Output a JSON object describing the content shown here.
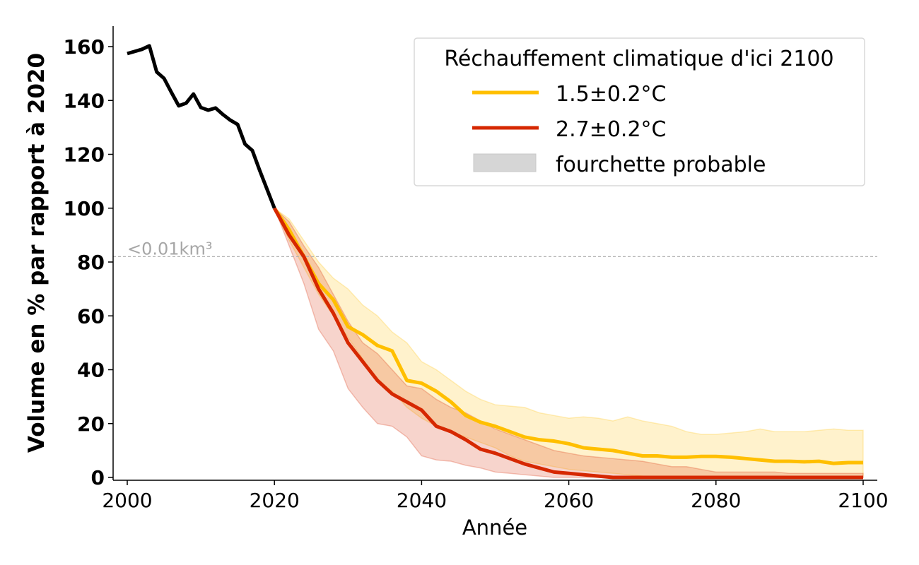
{
  "chart_data": {
    "type": "line",
    "title": "",
    "xlabel": "Année",
    "ylabel": "Volume en % par rapport à 2020",
    "xlim": [
      1998,
      2102
    ],
    "ylim": [
      -1,
      168
    ],
    "xticks": [
      2000,
      2020,
      2040,
      2060,
      2080,
      2100
    ],
    "yticks": [
      0,
      20,
      40,
      60,
      80,
      100,
      120,
      140,
      160
    ],
    "grid": false,
    "legend": {
      "title": "Réchauffement climatique d'ici 2100",
      "placement": "top-right",
      "entries": [
        "1.5±0.2°C",
        "2.7±0.2°C",
        "fourchette probable"
      ]
    },
    "threshold": {
      "y": 82,
      "label": "<0.01km³",
      "color": "#b3b3b3"
    },
    "historical": {
      "color": "#000000",
      "x": [
        2000,
        2001,
        2002,
        2003,
        2004,
        2005,
        2006,
        2007,
        2008,
        2009,
        2010,
        2011,
        2012,
        2013,
        2014,
        2015,
        2016,
        2017,
        2018,
        2019,
        2020
      ],
      "y": [
        157.4,
        158.2,
        159,
        160.3,
        150.6,
        148.2,
        143,
        138,
        139,
        142.4,
        137.4,
        136.4,
        137.2,
        134.8,
        132.7,
        131.1,
        123.8,
        121.4,
        114,
        107,
        100
      ]
    },
    "x": [
      2020,
      2022,
      2024,
      2026,
      2028,
      2030,
      2032,
      2034,
      2036,
      2038,
      2040,
      2042,
      2044,
      2046,
      2048,
      2050,
      2052,
      2054,
      2056,
      2058,
      2060,
      2062,
      2064,
      2066,
      2068,
      2070,
      2072,
      2074,
      2076,
      2078,
      2080,
      2082,
      2084,
      2086,
      2088,
      2090,
      2092,
      2094,
      2096,
      2098,
      2100
    ],
    "series": [
      {
        "name": "1.5±0.2°C",
        "color": "#ffbf00",
        "values": [
          100,
          92,
          82,
          72,
          66,
          56,
          53,
          49,
          47,
          36,
          35,
          32,
          28,
          23,
          20.5,
          19,
          17,
          15,
          14,
          13.5,
          12.5,
          11,
          10.5,
          10,
          9,
          8,
          8,
          7.5,
          7.5,
          7.8,
          7.8,
          7.5,
          7,
          6.5,
          6,
          6,
          5.8,
          6,
          5.2,
          5.5,
          5.5
        ],
        "upper": [
          100,
          96,
          88,
          80,
          74,
          70,
          64,
          60,
          54,
          50,
          43,
          40,
          36,
          32,
          29,
          27,
          26.5,
          26,
          24,
          23,
          22,
          22.5,
          22,
          21,
          22.5,
          21,
          20,
          19,
          17,
          16,
          16,
          16.5,
          17,
          18,
          17,
          17,
          17,
          17.5,
          18,
          17.5,
          17.5
        ],
        "lower": [
          100,
          88,
          78,
          68,
          60,
          52,
          44,
          36,
          32,
          26,
          22,
          19,
          17,
          15,
          13,
          11,
          8,
          6,
          5,
          4,
          3,
          2.5,
          2,
          1.5,
          1,
          0.5,
          0,
          0,
          0,
          0,
          0,
          0,
          0,
          0,
          0,
          0,
          0,
          0,
          0,
          0,
          0
        ]
      },
      {
        "name": "2.7±0.2°C",
        "color": "#d62800",
        "values": [
          100,
          90,
          82,
          70,
          61,
          50,
          43,
          36,
          31,
          28,
          25,
          19,
          17,
          14,
          10.5,
          9,
          7,
          5,
          3.5,
          2,
          1.5,
          1,
          0.5,
          0,
          0,
          0,
          0,
          0,
          0,
          0,
          0,
          0,
          0,
          0,
          0,
          0,
          0,
          0,
          0,
          0,
          0
        ],
        "upper": [
          100,
          95,
          86,
          78,
          68,
          58,
          50,
          46,
          40,
          34,
          33,
          29,
          26,
          24,
          21,
          18,
          16,
          14,
          12,
          10,
          9,
          8,
          7.5,
          7,
          6.5,
          6,
          5,
          4,
          4,
          3,
          2,
          2,
          2,
          2,
          2,
          1.5,
          1.5,
          1.5,
          1.5,
          1.5,
          1.5
        ],
        "lower": [
          100,
          86,
          72,
          55,
          47,
          33,
          26,
          20,
          19,
          15,
          8,
          6.5,
          6,
          4.5,
          3.5,
          2,
          1.5,
          1,
          0.5,
          0,
          0,
          0,
          0,
          0,
          0,
          0,
          0,
          0,
          0,
          0,
          0,
          0,
          0,
          0,
          0,
          0,
          0,
          0,
          0,
          0,
          0
        ]
      }
    ],
    "band_legend_color": "#d6d6d6"
  }
}
